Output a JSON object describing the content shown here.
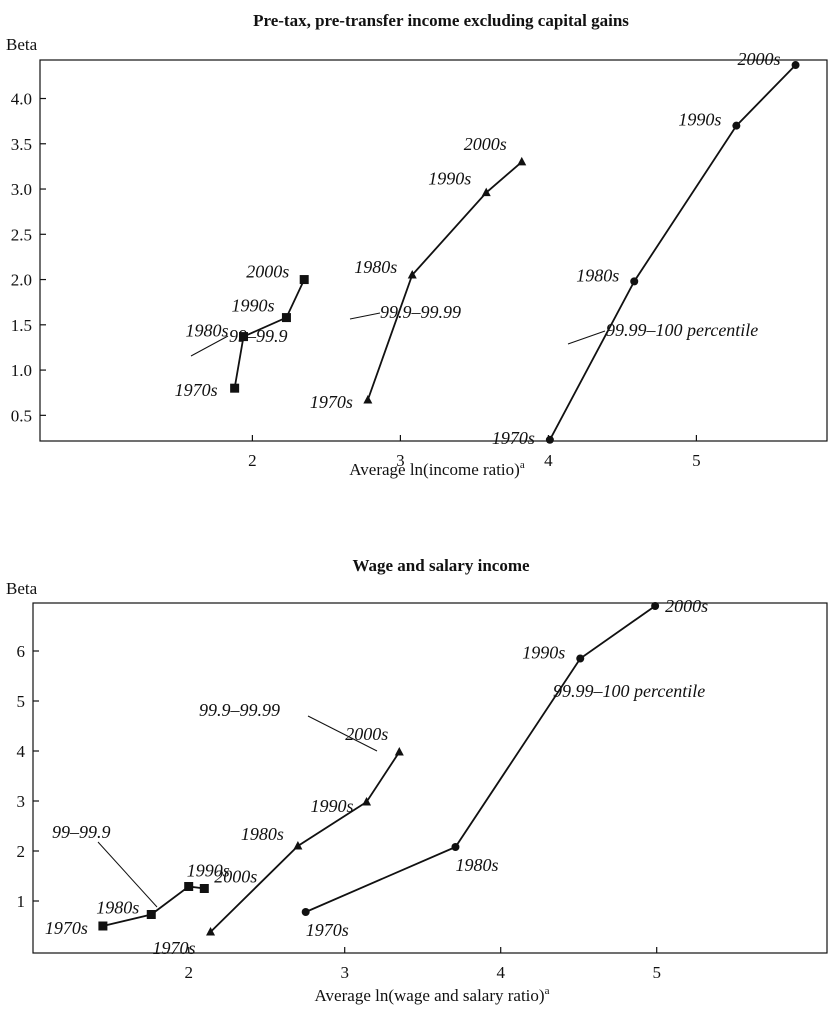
{
  "chart_data": [
    {
      "type": "line",
      "title": "Pre-tax, pre-transfer income excluding capital gains",
      "xlabel": "Average ln(income ratio)",
      "xlabel_sup": "a",
      "ylabel": "Beta",
      "xlim": [
        1.0,
        6.0
      ],
      "ylim": [
        0.0,
        4.6
      ],
      "xticks": [
        "2",
        "3",
        "4",
        "5"
      ],
      "yticks": [
        "0.5",
        "1.0",
        "1.5",
        "2.0",
        "2.5",
        "3.0",
        "3.5",
        "4.0"
      ],
      "series": [
        {
          "name": "99–99.9",
          "marker": "square",
          "points": [
            {
              "label": "1970s",
              "x": 1.88,
              "y": 0.8
            },
            {
              "label": "1980s",
              "x": 1.94,
              "y": 1.37
            },
            {
              "label": "1990s",
              "x": 2.23,
              "y": 1.58
            },
            {
              "label": "2000s",
              "x": 2.35,
              "y": 2.0
            }
          ]
        },
        {
          "name": "99.9–99.99",
          "marker": "triangle",
          "points": [
            {
              "label": "1970s",
              "x": 2.78,
              "y": 0.67
            },
            {
              "label": "1980s",
              "x": 3.08,
              "y": 2.05
            },
            {
              "label": "1990s",
              "x": 3.58,
              "y": 2.96
            },
            {
              "label": "2000s",
              "x": 3.82,
              "y": 3.3
            }
          ]
        },
        {
          "name": "99.99–100 percentile",
          "marker": "circle",
          "points": [
            {
              "label": "1970s",
              "x": 4.01,
              "y": 0.23
            },
            {
              "label": "1980s",
              "x": 4.58,
              "y": 1.98
            },
            {
              "label": "1990s",
              "x": 5.27,
              "y": 3.7
            },
            {
              "label": "2000s",
              "x": 5.67,
              "y": 4.37
            }
          ]
        }
      ]
    },
    {
      "type": "line",
      "title": "Wage and salary income",
      "xlabel": "Average ln(wage and salary ratio)",
      "xlabel_sup": "a",
      "ylabel": "Beta",
      "xlim": [
        1.0,
        6.0
      ],
      "ylim": [
        0.0,
        7.0
      ],
      "xticks": [
        "2",
        "3",
        "4",
        "5"
      ],
      "yticks": [
        "1",
        "2",
        "3",
        "4",
        "5",
        "6"
      ],
      "series": [
        {
          "name": "99–99.9",
          "marker": "square",
          "points": [
            {
              "label": "1970s",
              "x": 1.45,
              "y": 0.5
            },
            {
              "label": "1980s",
              "x": 1.76,
              "y": 0.73
            },
            {
              "label": "1990s",
              "x": 2.0,
              "y": 1.29
            },
            {
              "label": "2000s",
              "x": 2.1,
              "y": 1.25
            }
          ]
        },
        {
          "name": "99.9–99.99",
          "marker": "triangle",
          "points": [
            {
              "label": "1970s",
              "x": 2.14,
              "y": 0.38
            },
            {
              "label": "1980s",
              "x": 2.7,
              "y": 2.1
            },
            {
              "label": "1990s",
              "x": 3.14,
              "y": 2.98
            },
            {
              "label": "2000s",
              "x": 3.35,
              "y": 3.98
            }
          ]
        },
        {
          "name": "99.99–100 percentile",
          "marker": "circle",
          "points": [
            {
              "label": "1970s",
              "x": 2.75,
              "y": 0.78
            },
            {
              "label": "1980s",
              "x": 3.71,
              "y": 2.08
            },
            {
              "label": "1990s",
              "x": 4.51,
              "y": 5.85
            },
            {
              "label": "2000s",
              "x": 4.99,
              "y": 6.9
            }
          ]
        }
      ]
    }
  ]
}
